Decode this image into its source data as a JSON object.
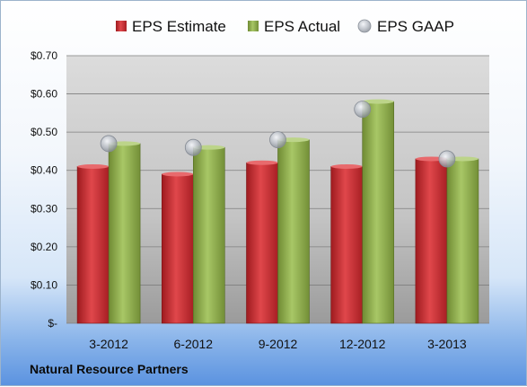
{
  "colors": {
    "estimate": "#c0282d",
    "actual": "#8fae4a",
    "gaap": "#b8bec7",
    "plot_top": "#d9d9d9",
    "plot_bottom": "#9a9a9a"
  },
  "footer": {
    "company": "Natural Resource Partners"
  },
  "chart_data": {
    "type": "bar",
    "categories": [
      "3-2012",
      "6-2012",
      "9-2012",
      "12-2012",
      "3-2013"
    ],
    "series": [
      {
        "name": "EPS Estimate",
        "values": [
          0.41,
          0.39,
          0.42,
          0.41,
          0.43
        ]
      },
      {
        "name": "EPS Actual",
        "values": [
          0.47,
          0.46,
          0.48,
          0.58,
          0.43
        ]
      },
      {
        "name": "EPS GAAP",
        "values": [
          0.47,
          0.46,
          0.48,
          0.56,
          0.43
        ]
      }
    ],
    "yticks": [
      0,
      0.1,
      0.2,
      0.3,
      0.4,
      0.5,
      0.6,
      0.7
    ],
    "ytick_labels": [
      "$-",
      "$0.10",
      "$0.20",
      "$0.30",
      "$0.40",
      "$0.50",
      "$0.60",
      "$0.70"
    ],
    "ylim": [
      0,
      0.7
    ],
    "grid": true,
    "legend_position": "top"
  }
}
